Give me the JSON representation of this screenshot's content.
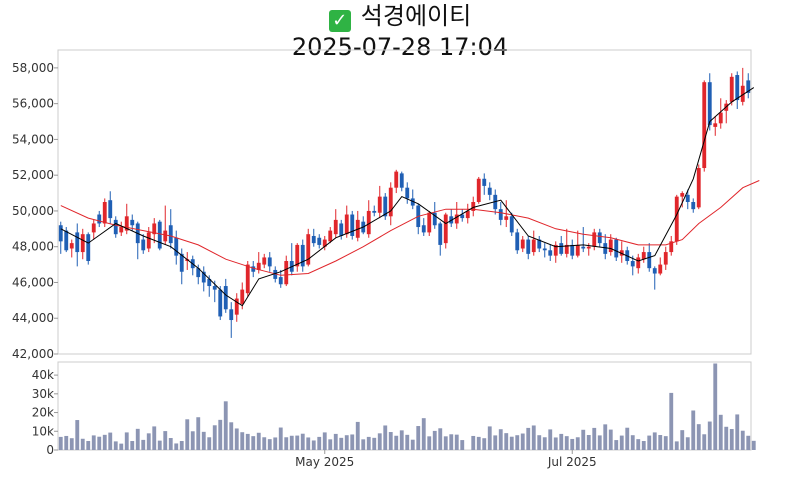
{
  "header": {
    "check_icon": "✓",
    "title": "석경에이티",
    "subtitle": "2025-07-28 17:04"
  },
  "colors": {
    "up": "#e0262b",
    "down": "#1f5fb4",
    "ma_short": "#000000",
    "ma_long": "#e0262b",
    "volume": "#8c95b3",
    "axis": "#999999"
  },
  "chart_data": {
    "type": "candlestick",
    "price_axis": {
      "ticks": [
        "42,000",
        "44,000",
        "46,000",
        "48,000",
        "50,000",
        "52,000",
        "54,000",
        "56,000",
        "58,000"
      ],
      "ylim": [
        42000,
        59000
      ]
    },
    "volume_axis": {
      "ticks": [
        "0",
        "10k",
        "20k",
        "30k",
        "40k"
      ],
      "ylim": [
        0,
        47000
      ]
    },
    "x_ticks": [
      {
        "label": "May 2025",
        "index": 48
      },
      {
        "label": "Jul 2025",
        "index": 93
      }
    ],
    "candles": [
      [
        49200,
        48300,
        49400,
        47600
      ],
      [
        48900,
        47800,
        49100,
        47700
      ],
      [
        47900,
        48200,
        48400,
        47400
      ],
      [
        48800,
        47700,
        49300,
        46900
      ],
      [
        47700,
        48700,
        49000,
        47300
      ],
      [
        48700,
        47200,
        48800,
        47000
      ],
      [
        48800,
        49300,
        49500,
        48400
      ],
      [
        49800,
        49300,
        50000,
        49100
      ],
      [
        49300,
        50500,
        50700,
        49100
      ],
      [
        50600,
        49600,
        51100,
        49300
      ],
      [
        49500,
        48700,
        49700,
        48500
      ],
      [
        48800,
        49100,
        49400,
        48600
      ],
      [
        48900,
        49700,
        50400,
        48700
      ],
      [
        49500,
        49200,
        49800,
        48900
      ],
      [
        49300,
        48200,
        49400,
        47300
      ],
      [
        48400,
        47800,
        48700,
        47600
      ],
      [
        47900,
        48800,
        49100,
        47700
      ],
      [
        48700,
        49300,
        49600,
        48200
      ],
      [
        49400,
        47900,
        49500,
        47800
      ],
      [
        48300,
        48900,
        50300,
        48100
      ],
      [
        49200,
        48200,
        50100,
        47900
      ],
      [
        48500,
        47500,
        48900,
        47000
      ],
      [
        47600,
        46600,
        47900,
        45900
      ],
      [
        47200,
        47300,
        47700,
        46700
      ],
      [
        47300,
        46800,
        47500,
        46400
      ],
      [
        46800,
        46300,
        47000,
        45900
      ],
      [
        46600,
        46000,
        46900,
        45500
      ],
      [
        46200,
        45800,
        46400,
        45200
      ],
      [
        45800,
        45600,
        46100,
        44900
      ],
      [
        45600,
        44100,
        45800,
        43900
      ],
      [
        45800,
        44500,
        46200,
        44300
      ],
      [
        44500,
        43900,
        44900,
        42900
      ],
      [
        44200,
        45100,
        45400,
        43800
      ],
      [
        44800,
        45600,
        46000,
        44500
      ],
      [
        45400,
        47000,
        47200,
        45200
      ],
      [
        46900,
        46600,
        47200,
        46300
      ],
      [
        46700,
        47100,
        47700,
        46500
      ],
      [
        47000,
        47400,
        47600,
        46800
      ],
      [
        47400,
        46900,
        47700,
        46600
      ],
      [
        46700,
        46200,
        46900,
        46000
      ],
      [
        46300,
        45900,
        46700,
        45700
      ],
      [
        45900,
        47200,
        47500,
        45800
      ],
      [
        47200,
        46600,
        48200,
        46400
      ],
      [
        46900,
        48100,
        48200,
        46600
      ],
      [
        48100,
        46900,
        48400,
        46600
      ],
      [
        47000,
        48700,
        49000,
        46900
      ],
      [
        48600,
        48200,
        49000,
        48000
      ],
      [
        48500,
        48100,
        48700,
        47900
      ],
      [
        48000,
        48400,
        48600,
        47800
      ],
      [
        48300,
        48900,
        49100,
        48200
      ],
      [
        48700,
        49500,
        50100,
        48500
      ],
      [
        49300,
        48600,
        49500,
        48400
      ],
      [
        48700,
        49800,
        50300,
        48500
      ],
      [
        49800,
        48600,
        50000,
        48400
      ],
      [
        48500,
        49500,
        50000,
        48300
      ],
      [
        49400,
        48800,
        49700,
        48700
      ],
      [
        48700,
        50000,
        50600,
        48500
      ],
      [
        50000,
        49900,
        50300,
        49700
      ],
      [
        49900,
        50800,
        51400,
        49600
      ],
      [
        50800,
        49700,
        51000,
        49500
      ],
      [
        49700,
        51300,
        51600,
        49200
      ],
      [
        51300,
        52200,
        52300,
        51000
      ],
      [
        52100,
        51300,
        52200,
        51100
      ],
      [
        51300,
        50700,
        51600,
        50400
      ],
      [
        50700,
        50300,
        51200,
        50100
      ],
      [
        50300,
        49100,
        50400,
        48700
      ],
      [
        49200,
        48800,
        49600,
        48600
      ],
      [
        48800,
        49900,
        50000,
        48600
      ],
      [
        49900,
        49200,
        50500,
        49000
      ],
      [
        49300,
        48100,
        49400,
        47500
      ],
      [
        48200,
        49800,
        49900,
        47900
      ],
      [
        49700,
        49300,
        50100,
        49100
      ],
      [
        49300,
        49800,
        50500,
        49000
      ],
      [
        49800,
        49600,
        50100,
        49400
      ],
      [
        49600,
        50000,
        50400,
        49300
      ],
      [
        50000,
        50500,
        50800,
        49700
      ],
      [
        50500,
        51800,
        51900,
        50400
      ],
      [
        51800,
        51400,
        52100,
        50900
      ],
      [
        51300,
        50900,
        51600,
        50600
      ],
      [
        50900,
        50100,
        51200,
        49800
      ],
      [
        50100,
        49500,
        50500,
        49200
      ],
      [
        49500,
        49700,
        50600,
        49100
      ],
      [
        49700,
        48800,
        49900,
        48600
      ],
      [
        48800,
        47800,
        49000,
        47600
      ],
      [
        47900,
        48400,
        48600,
        47700
      ],
      [
        48400,
        47600,
        48600,
        47300
      ],
      [
        47700,
        48400,
        48900,
        47500
      ],
      [
        48400,
        47900,
        48600,
        47700
      ],
      [
        47900,
        47800,
        48200,
        47400
      ],
      [
        47800,
        47500,
        48100,
        47200
      ],
      [
        47500,
        48100,
        48300,
        47100
      ],
      [
        48200,
        47600,
        48600,
        47500
      ],
      [
        47600,
        48100,
        49000,
        47400
      ],
      [
        48100,
        47500,
        48400,
        47300
      ],
      [
        47500,
        48100,
        48900,
        47400
      ],
      [
        48000,
        47900,
        49100,
        47700
      ],
      [
        47900,
        48000,
        48200,
        47500
      ],
      [
        48000,
        48800,
        49000,
        47800
      ],
      [
        48800,
        48200,
        49000,
        48000
      ],
      [
        48200,
        47600,
        48700,
        47300
      ],
      [
        47700,
        48400,
        48700,
        47500
      ],
      [
        48400,
        47400,
        48500,
        47200
      ],
      [
        47500,
        47800,
        48300,
        47100
      ],
      [
        47800,
        47200,
        48000,
        47000
      ],
      [
        47200,
        46900,
        47500,
        46400
      ],
      [
        46800,
        47400,
        47600,
        46500
      ],
      [
        47300,
        47700,
        48000,
        47100
      ],
      [
        47700,
        46800,
        48200,
        46600
      ],
      [
        46800,
        46500,
        46900,
        45600
      ],
      [
        46500,
        47000,
        47400,
        46400
      ],
      [
        47000,
        47700,
        48000,
        46700
      ],
      [
        47700,
        48300,
        48600,
        47500
      ],
      [
        48300,
        50800,
        50900,
        48100
      ],
      [
        50800,
        51000,
        51100,
        50200
      ],
      [
        50900,
        50500,
        51200,
        50100
      ],
      [
        50500,
        50100,
        50700,
        49900
      ],
      [
        50200,
        52400,
        52600,
        50100
      ],
      [
        52400,
        57200,
        57300,
        52200
      ],
      [
        57200,
        54800,
        57700,
        54500
      ],
      [
        54700,
        54900,
        55300,
        54200
      ],
      [
        54900,
        55500,
        56300,
        54600
      ],
      [
        55600,
        56000,
        56200,
        54900
      ],
      [
        56100,
        57500,
        57700,
        55900
      ],
      [
        57600,
        56200,
        57800,
        55700
      ],
      [
        56100,
        57000,
        58000,
        55900
      ],
      [
        57300,
        56600,
        57700,
        56300
      ]
    ],
    "ma_short": [
      [
        0,
        49000
      ],
      [
        5,
        48200
      ],
      [
        10,
        49300
      ],
      [
        15,
        48600
      ],
      [
        20,
        48000
      ],
      [
        25,
        46800
      ],
      [
        30,
        45300
      ],
      [
        33,
        44700
      ],
      [
        36,
        46200
      ],
      [
        40,
        46600
      ],
      [
        45,
        47300
      ],
      [
        50,
        48500
      ],
      [
        55,
        49100
      ],
      [
        60,
        50000
      ],
      [
        62,
        50800
      ],
      [
        65,
        50400
      ],
      [
        70,
        49300
      ],
      [
        75,
        50200
      ],
      [
        80,
        50600
      ],
      [
        85,
        48600
      ],
      [
        90,
        48000
      ],
      [
        95,
        48100
      ],
      [
        100,
        47900
      ],
      [
        105,
        47200
      ],
      [
        108,
        47500
      ],
      [
        112,
        49800
      ],
      [
        115,
        51800
      ],
      [
        118,
        55000
      ],
      [
        122,
        56100
      ],
      [
        126,
        56900
      ]
    ],
    "ma_long": [
      [
        0,
        50300
      ],
      [
        5,
        49600
      ],
      [
        10,
        49200
      ],
      [
        15,
        48900
      ],
      [
        20,
        48600
      ],
      [
        25,
        48100
      ],
      [
        30,
        47300
      ],
      [
        35,
        46800
      ],
      [
        40,
        46400
      ],
      [
        45,
        46500
      ],
      [
        50,
        47200
      ],
      [
        55,
        48000
      ],
      [
        60,
        48900
      ],
      [
        65,
        49700
      ],
      [
        70,
        50100
      ],
      [
        75,
        50100
      ],
      [
        80,
        49900
      ],
      [
        85,
        49600
      ],
      [
        90,
        49000
      ],
      [
        95,
        48700
      ],
      [
        100,
        48500
      ],
      [
        105,
        48100
      ],
      [
        110,
        48100
      ],
      [
        113,
        48400
      ],
      [
        116,
        49300
      ],
      [
        120,
        50200
      ],
      [
        124,
        51300
      ],
      [
        127,
        51700
      ]
    ],
    "volume": [
      7000,
      7500,
      6300,
      16000,
      6000,
      4800,
      7800,
      7100,
      8100,
      9300,
      4600,
      3400,
      9400,
      4800,
      11300,
      5400,
      8900,
      12600,
      5000,
      10100,
      6400,
      3500,
      4800,
      16400,
      10000,
      17500,
      9700,
      6800,
      13200,
      16100,
      26000,
      14800,
      11500,
      9500,
      8600,
      7400,
      9200,
      6800,
      5800,
      6700,
      12000,
      6800,
      7600,
      7700,
      8700,
      6700,
      5100,
      7000,
      9400,
      5700,
      8600,
      6500,
      7900,
      8300,
      15000,
      5700,
      7000,
      6500,
      8900,
      13100,
      9600,
      7600,
      10500,
      8100,
      5500,
      12800,
      17000,
      7300,
      10200,
      11600,
      7300,
      8400,
      8200,
      5300,
      0,
      7500,
      7000,
      6300,
      12600,
      7800,
      11100,
      9000,
      7100,
      7900,
      8800,
      11800,
      13100,
      7900,
      6800,
      11000,
      6700,
      8600,
      7400,
      5900,
      6800,
      10800,
      8000,
      11800,
      7800,
      13700,
      10900,
      5300,
      7700,
      11900,
      7900,
      5800,
      4800,
      7700,
      9400,
      8000,
      7400,
      30500,
      4600,
      10600,
      6800,
      21100,
      13800,
      8400,
      15200,
      46200,
      18800,
      12400,
      11200,
      19000,
      10300,
      7600,
      4900
    ]
  }
}
